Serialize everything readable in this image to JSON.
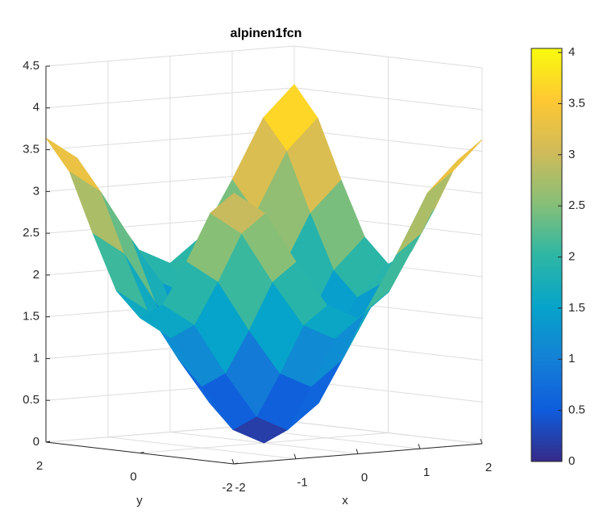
{
  "chart_data": {
    "type": "surface",
    "title": "alpinen1fcn",
    "xlabel": "x",
    "ylabel": "y",
    "x": [
      -2,
      -1.5,
      -1,
      -0.5,
      0,
      0.5,
      1,
      1.5,
      2
    ],
    "y": [
      -2,
      -1.5,
      -1,
      -0.5,
      0,
      0.5,
      1,
      1.5,
      2
    ],
    "z": [
      [
        3.24,
        2.97,
        2.36,
        1.81,
        1.62,
        1.91,
        2.56,
        3.27,
        3.64
      ],
      [
        2.97,
        2.7,
        2.09,
        1.54,
        1.35,
        1.64,
        2.29,
        3.0,
        3.37
      ],
      [
        2.36,
        2.09,
        1.48,
        0.93,
        0.74,
        1.03,
        1.68,
        2.39,
        2.76
      ],
      [
        1.81,
        1.54,
        0.93,
        0.38,
        0.19,
        0.48,
        1.13,
        1.84,
        2.21
      ],
      [
        1.62,
        1.35,
        0.74,
        0.19,
        0,
        0.29,
        0.94,
        1.65,
        2.02
      ],
      [
        1.91,
        1.64,
        1.03,
        0.48,
        0.29,
        0.58,
        1.23,
        1.94,
        2.31
      ],
      [
        2.56,
        2.29,
        1.68,
        1.13,
        0.94,
        1.23,
        1.88,
        2.59,
        2.96
      ],
      [
        3.27,
        3.0,
        2.39,
        1.84,
        1.65,
        1.94,
        2.59,
        3.3,
        3.67
      ],
      [
        3.64,
        3.37,
        2.76,
        2.21,
        2.02,
        2.31,
        2.96,
        3.67,
        4.04
      ]
    ],
    "xlim": [
      -2,
      2
    ],
    "ylim": [
      -2,
      2
    ],
    "zlim": [
      0,
      4.5
    ],
    "xticks": [
      -2,
      -1,
      0,
      1,
      2
    ],
    "yticks": [
      -2,
      0,
      2
    ],
    "zticks": [
      0,
      0.5,
      1,
      1.5,
      2,
      2.5,
      3,
      3.5,
      4,
      4.5
    ],
    "grid": true,
    "colormap": [
      "#352a87",
      "#0f5cdd",
      "#1481d6",
      "#06a4ca",
      "#2eb7a4",
      "#87bf77",
      "#d1bb59",
      "#fec832",
      "#f9fb0e"
    ],
    "colorbar": {
      "clim": [
        0,
        4.04
      ],
      "ticks": [
        0,
        0.5,
        1,
        1.5,
        2,
        2.5,
        3,
        3.5,
        4
      ]
    }
  }
}
